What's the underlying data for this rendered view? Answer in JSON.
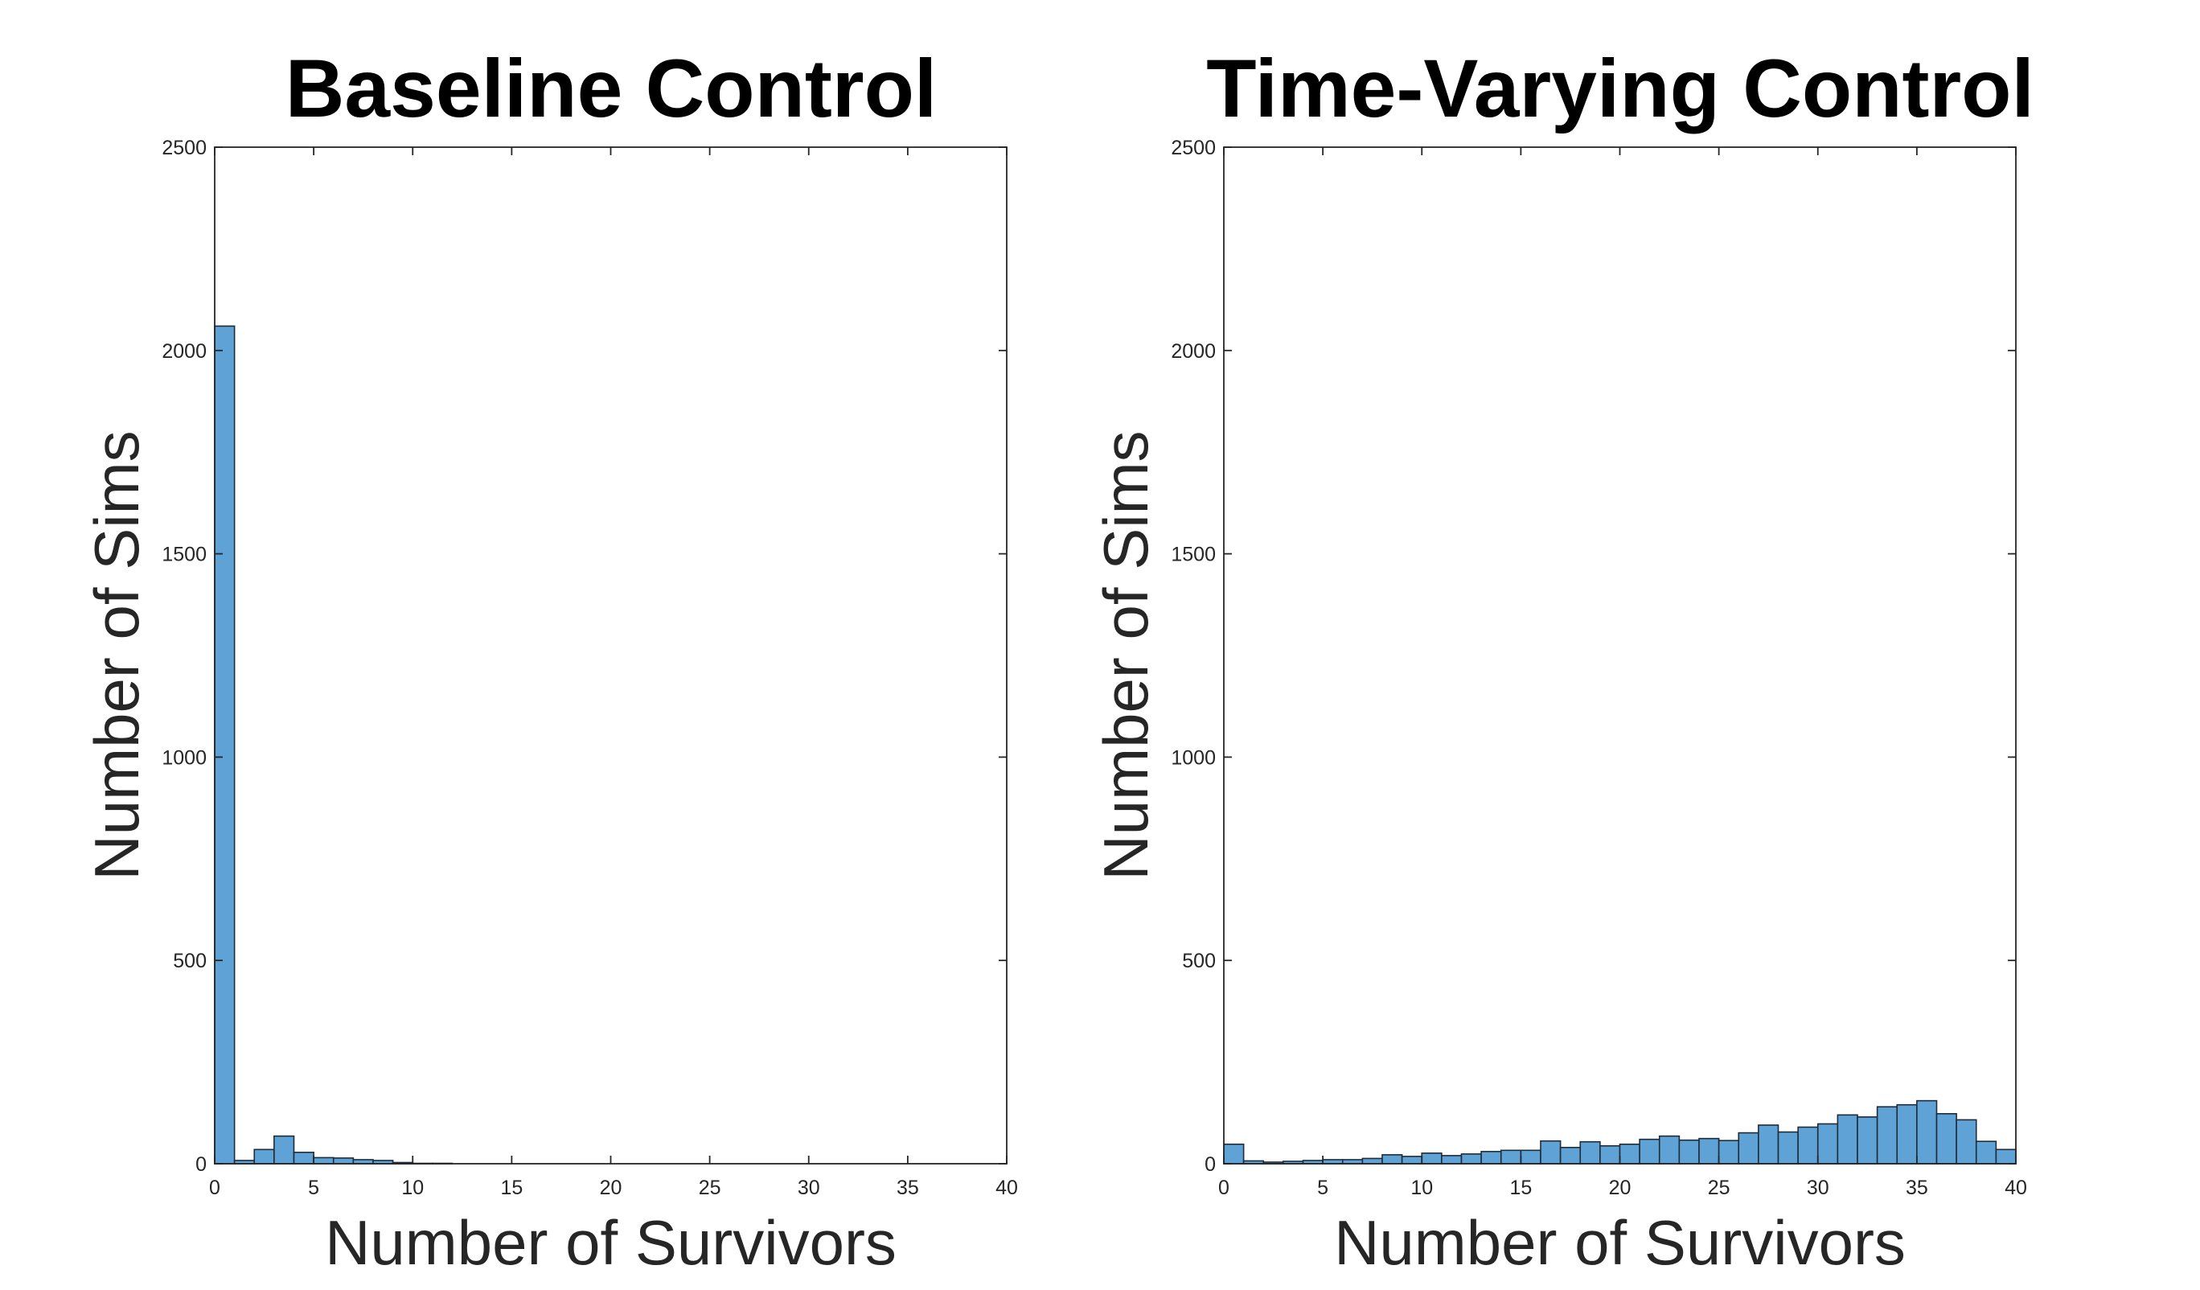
{
  "chart_data": [
    {
      "type": "bar",
      "title": "Baseline Control",
      "xlabel": "Number of Survivors",
      "ylabel": "Number of Sims",
      "xlim": [
        0,
        40
      ],
      "ylim": [
        0,
        2500
      ],
      "xticks": [
        "0",
        "5",
        "10",
        "15",
        "20",
        "25",
        "30",
        "35",
        "40"
      ],
      "yticks": [
        "0",
        "500",
        "1000",
        "1500",
        "2000",
        "2500"
      ],
      "bin_edges": [
        0,
        1,
        2,
        3,
        4,
        5,
        6,
        7,
        8,
        9,
        10,
        11,
        12,
        13,
        14,
        15,
        16,
        17,
        18,
        19,
        20,
        21,
        22,
        23,
        24,
        25,
        26,
        27,
        28,
        29,
        30,
        31,
        32,
        33,
        34,
        35,
        36,
        37,
        38,
        39,
        40
      ],
      "values": [
        2060,
        8,
        35,
        68,
        28,
        15,
        14,
        10,
        8,
        3,
        1,
        1,
        0,
        0,
        0,
        0,
        0,
        0,
        0,
        0,
        0,
        0,
        0,
        0,
        0,
        0,
        0,
        0,
        0,
        0,
        0,
        0,
        0,
        0,
        0,
        0,
        0,
        0,
        0,
        0
      ],
      "color": "#5fa3d6",
      "grid": false
    },
    {
      "type": "bar",
      "title": "Time-Varying Control",
      "xlabel": "Number of Survivors",
      "ylabel": "Number of Sims",
      "xlim": [
        0,
        40
      ],
      "ylim": [
        0,
        2500
      ],
      "xticks": [
        "0",
        "5",
        "10",
        "15",
        "20",
        "25",
        "30",
        "35",
        "40"
      ],
      "yticks": [
        "0",
        "500",
        "1000",
        "1500",
        "2000",
        "2500"
      ],
      "bin_edges": [
        0,
        1,
        2,
        3,
        4,
        5,
        6,
        7,
        8,
        9,
        10,
        11,
        12,
        13,
        14,
        15,
        16,
        17,
        18,
        19,
        20,
        21,
        22,
        23,
        24,
        25,
        26,
        27,
        28,
        29,
        30,
        31,
        32,
        33,
        34,
        35,
        36,
        37,
        38,
        39,
        40
      ],
      "values": [
        48,
        7,
        4,
        6,
        8,
        10,
        10,
        13,
        22,
        18,
        26,
        20,
        24,
        30,
        33,
        33,
        56,
        40,
        54,
        44,
        48,
        60,
        68,
        58,
        62,
        57,
        76,
        95,
        78,
        90,
        98,
        120,
        115,
        140,
        145,
        155,
        123,
        108,
        55,
        35
      ],
      "color": "#5fa3d6",
      "grid": false
    }
  ]
}
